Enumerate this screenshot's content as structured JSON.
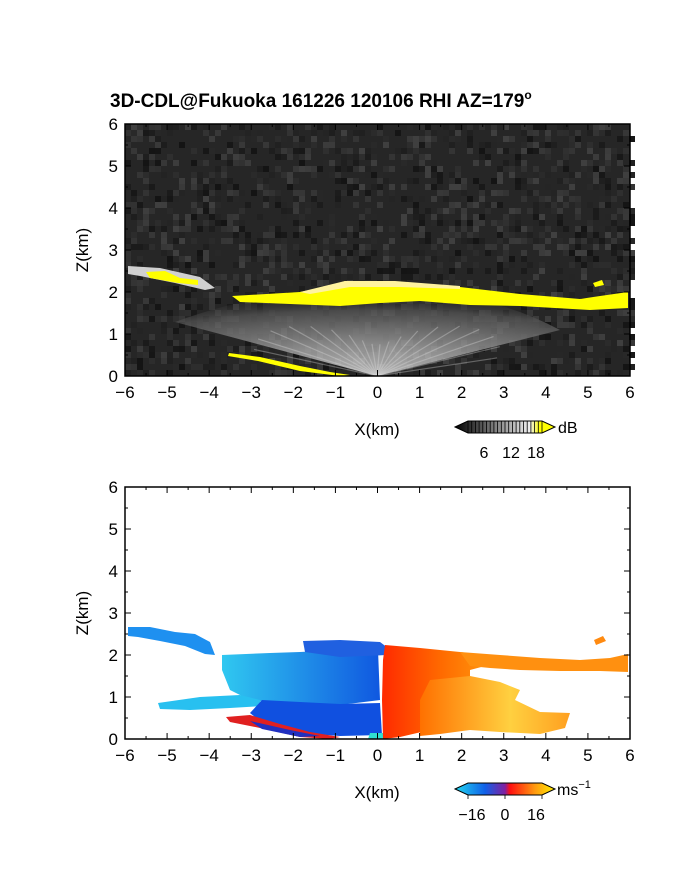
{
  "title": "3D-CDL@Fukuoka 161226 120106 RHI AZ=179",
  "title_degree": "o",
  "chart_data": [
    {
      "type": "heatmap",
      "field": "reflectivity",
      "xlabel": "X(km)",
      "ylabel": "Z(km)",
      "xlim": [
        -6,
        6
      ],
      "ylim": [
        0,
        6
      ],
      "xticks": [
        "−6",
        "−5",
        "−4",
        "−3",
        "−2",
        "−1",
        "0",
        "1",
        "2",
        "3",
        "4",
        "5",
        "6"
      ],
      "yticks": [
        "0",
        "1",
        "2",
        "3",
        "4",
        "5",
        "6"
      ],
      "colorbar": {
        "unit": "dB",
        "ticks": [
          "6",
          "12",
          "18"
        ],
        "range": [
          0,
          20
        ]
      },
      "colors": {
        "background_noise": "#2a2a2a",
        "strong_echo": "#ffff00",
        "fan": "#9c9c9c"
      },
      "echo_layers": [
        {
          "x": [
            -5.9,
            -5.3,
            -4.6,
            -4.0
          ],
          "z": [
            2.5,
            2.35,
            2.25,
            2.1
          ]
        },
        {
          "x": [
            -3.4,
            -2.0,
            -0.9,
            0.5,
            2.0,
            3.5,
            5.0,
            6.0
          ],
          "z": [
            1.9,
            1.85,
            1.95,
            2.1,
            2.0,
            1.85,
            1.8,
            1.75
          ]
        },
        {
          "x": [
            -3.5,
            -2.5,
            -1.5,
            -0.6
          ],
          "z": [
            0.5,
            0.38,
            0.2,
            0.05
          ]
        }
      ]
    },
    {
      "type": "heatmap",
      "field": "doppler velocity",
      "xlabel": "X(km)",
      "ylabel": "Z(km)",
      "xlim": [
        -6,
        6
      ],
      "ylim": [
        0,
        6
      ],
      "xticks": [
        "−6",
        "−5",
        "−4",
        "−3",
        "−2",
        "−1",
        "0",
        "1",
        "2",
        "3",
        "4",
        "5",
        "6"
      ],
      "yticks": [
        "0",
        "1",
        "2",
        "3",
        "4",
        "5",
        "6"
      ],
      "colorbar": {
        "unit": "ms",
        "unit_exp": "−1",
        "ticks": [
          "−16",
          "0",
          "16"
        ],
        "range": [
          -20,
          20
        ]
      },
      "colors": {
        "approaching": "#1e6fe0",
        "approaching_far": "#22c8f0",
        "receding": "#ff3c00",
        "receding_far": "#ff9a10"
      },
      "regions": [
        {
          "x": [
            -6.0,
            -4.2
          ],
          "z": [
            2.3,
            2.6
          ],
          "velocity": -6
        },
        {
          "x": [
            -3.6,
            0.0
          ],
          "z": [
            1.0,
            2.0
          ],
          "velocity": -12
        },
        {
          "x": [
            -5.4,
            -2.5
          ],
          "z": [
            0.8,
            1.0
          ],
          "velocity": -6
        },
        {
          "x": [
            -1.8,
            0.0
          ],
          "z": [
            1.9,
            2.3
          ],
          "velocity": -18
        },
        {
          "x": [
            0.0,
            2.5
          ],
          "z": [
            0.1,
            2.2
          ],
          "velocity": 6
        },
        {
          "x": [
            2.5,
            6.0
          ],
          "z": [
            1.6,
            1.95
          ],
          "velocity": 14
        },
        {
          "x": [
            2.0,
            4.6
          ],
          "z": [
            0.3,
            1.2
          ],
          "velocity": 12
        },
        {
          "x": [
            -3.7,
            -1.2
          ],
          "z": [
            0.05,
            0.55
          ],
          "velocity": -18
        }
      ]
    }
  ]
}
